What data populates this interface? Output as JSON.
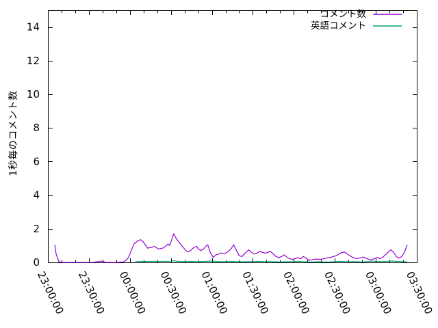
{
  "window": {
    "background": "#ffffff",
    "frame_color": "#000000"
  },
  "chart_data": {
    "type": "line",
    "title": "",
    "xlabel": "",
    "ylabel": "1秒毎のコメント数",
    "ylim": [
      0,
      15
    ],
    "yticks": [
      0,
      2,
      4,
      6,
      8,
      10,
      12,
      14
    ],
    "grid": false,
    "legend_position": "top-right",
    "x_axis": {
      "unit": "time (hh:mm:ss), minutes measured from 23:00:00",
      "range_minutes": [
        0,
        270
      ],
      "major_interval_minutes": 30,
      "minor_interval_minutes": 10,
      "major_tick_labels": [
        "23:00:00",
        "23:30:00",
        "00:00:00",
        "00:30:00",
        "01:00:00",
        "01:30:00",
        "02:00:00",
        "02:30:00",
        "03:00:00",
        "03:30:00"
      ],
      "label_rotation_deg": 64
    },
    "series": [
      {
        "id": "comments",
        "name": "コメント数",
        "color": "#9400d3",
        "points": [
          [
            5,
            1.05
          ],
          [
            6,
            0.5
          ],
          [
            8,
            0.05
          ],
          [
            10,
            0
          ],
          [
            20,
            0
          ],
          [
            33,
            0
          ],
          [
            35,
            0.03
          ],
          [
            40,
            0.08
          ],
          [
            42,
            0
          ],
          [
            50,
            0
          ],
          [
            55,
            0.03
          ],
          [
            57,
            0.1
          ],
          [
            59,
            0.3
          ],
          [
            61,
            0.7
          ],
          [
            63,
            1.1
          ],
          [
            66,
            1.3
          ],
          [
            68,
            1.35
          ],
          [
            70,
            1.2
          ],
          [
            73,
            0.85
          ],
          [
            76,
            0.9
          ],
          [
            78,
            0.95
          ],
          [
            81,
            0.8
          ],
          [
            84,
            0.85
          ],
          [
            86,
            0.95
          ],
          [
            88,
            1.1
          ],
          [
            89,
            1.0
          ],
          [
            90,
            1.2
          ],
          [
            92,
            1.7
          ],
          [
            93,
            1.55
          ],
          [
            95,
            1.3
          ],
          [
            97,
            1.1
          ],
          [
            99,
            0.9
          ],
          [
            101,
            0.7
          ],
          [
            103,
            0.62
          ],
          [
            105,
            0.75
          ],
          [
            107,
            0.9
          ],
          [
            109,
            0.95
          ],
          [
            110,
            0.8
          ],
          [
            112,
            0.7
          ],
          [
            114,
            0.8
          ],
          [
            116,
            1.0
          ],
          [
            117,
            1.05
          ],
          [
            119,
            0.55
          ],
          [
            121,
            0.3
          ],
          [
            123,
            0.45
          ],
          [
            125,
            0.5
          ],
          [
            127,
            0.57
          ],
          [
            129,
            0.5
          ],
          [
            132,
            0.65
          ],
          [
            134,
            0.8
          ],
          [
            136,
            1.05
          ],
          [
            138,
            0.7
          ],
          [
            140,
            0.4
          ],
          [
            142,
            0.35
          ],
          [
            145,
            0.6
          ],
          [
            147,
            0.75
          ],
          [
            149,
            0.6
          ],
          [
            151,
            0.5
          ],
          [
            153,
            0.55
          ],
          [
            155,
            0.65
          ],
          [
            157,
            0.6
          ],
          [
            159,
            0.55
          ],
          [
            161,
            0.6
          ],
          [
            163,
            0.65
          ],
          [
            165,
            0.5
          ],
          [
            167,
            0.35
          ],
          [
            169,
            0.28
          ],
          [
            171,
            0.35
          ],
          [
            173,
            0.45
          ],
          [
            175,
            0.3
          ],
          [
            177,
            0.22
          ],
          [
            179,
            0.18
          ],
          [
            181,
            0.22
          ],
          [
            183,
            0.28
          ],
          [
            185,
            0.22
          ],
          [
            187,
            0.35
          ],
          [
            189,
            0.25
          ],
          [
            191,
            0.12
          ],
          [
            193,
            0.15
          ],
          [
            196,
            0.2
          ],
          [
            199,
            0.18
          ],
          [
            202,
            0.22
          ],
          [
            205,
            0.28
          ],
          [
            208,
            0.32
          ],
          [
            211,
            0.4
          ],
          [
            214,
            0.55
          ],
          [
            217,
            0.62
          ],
          [
            220,
            0.45
          ],
          [
            223,
            0.3
          ],
          [
            226,
            0.22
          ],
          [
            229,
            0.28
          ],
          [
            231,
            0.32
          ],
          [
            233,
            0.25
          ],
          [
            236,
            0.15
          ],
          [
            239,
            0.22
          ],
          [
            241,
            0.3
          ],
          [
            243,
            0.22
          ],
          [
            245,
            0.3
          ],
          [
            247,
            0.45
          ],
          [
            249,
            0.6
          ],
          [
            251,
            0.75
          ],
          [
            253,
            0.6
          ],
          [
            255,
            0.35
          ],
          [
            257,
            0.25
          ],
          [
            259,
            0.35
          ],
          [
            261,
            0.6
          ],
          [
            263,
            1.05
          ]
        ]
      },
      {
        "id": "english-comments",
        "name": "英語コメント",
        "color": "#009e73",
        "points": [
          [
            64,
            0.05
          ],
          [
            70,
            0.06
          ],
          [
            80,
            0.06
          ],
          [
            90,
            0.07
          ],
          [
            92,
            0.1
          ],
          [
            95,
            0.06
          ],
          [
            100,
            0.05
          ],
          [
            105,
            0.06
          ],
          [
            110,
            0.05
          ],
          [
            115,
            0.06
          ],
          [
            118,
            0.08
          ],
          [
            122,
            0.06
          ],
          [
            126,
            0.04
          ],
          [
            130,
            0.05
          ],
          [
            134,
            0.06
          ],
          [
            138,
            0.05
          ],
          [
            142,
            0.04
          ],
          [
            146,
            0.05
          ],
          [
            150,
            0.05
          ],
          [
            154,
            0.06
          ],
          [
            158,
            0.05
          ],
          [
            162,
            0.05
          ],
          [
            166,
            0.04
          ],
          [
            170,
            0.02
          ],
          [
            174,
            0.04
          ],
          [
            178,
            0.05
          ],
          [
            182,
            0.06
          ],
          [
            186,
            0.05
          ],
          [
            190,
            0.03
          ],
          [
            194,
            0.02
          ],
          [
            198,
            0.04
          ],
          [
            202,
            0.03
          ],
          [
            206,
            0.02
          ],
          [
            210,
            0.05
          ],
          [
            214,
            0.06
          ],
          [
            218,
            0.05
          ],
          [
            222,
            0.05
          ],
          [
            226,
            0.04
          ],
          [
            230,
            0.02
          ],
          [
            234,
            0.04
          ],
          [
            237,
            0.08
          ],
          [
            240,
            0.06
          ],
          [
            244,
            0.05
          ],
          [
            248,
            0.06
          ],
          [
            252,
            0.08
          ],
          [
            256,
            0.06
          ],
          [
            260,
            0.05
          ],
          [
            263,
            0.03
          ]
        ]
      }
    ]
  }
}
